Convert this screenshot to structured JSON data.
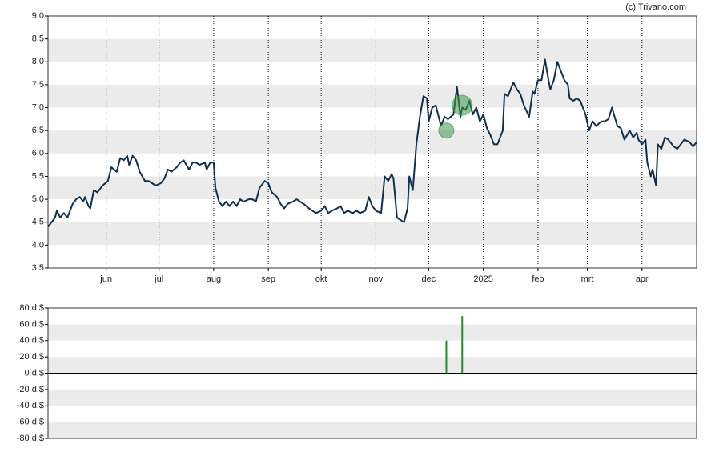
{
  "chart_data": [
    {
      "type": "line",
      "annotation": "(c) Trivano.com",
      "color": "#0e2f4f",
      "xlim": [
        0,
        368
      ],
      "ylim": [
        3.5,
        9
      ],
      "vgrid": true,
      "xticks": [
        {
          "value": 33,
          "label": "jun"
        },
        {
          "value": 63,
          "label": "jul"
        },
        {
          "value": 94,
          "label": "aug"
        },
        {
          "value": 125,
          "label": "sep"
        },
        {
          "value": 155,
          "label": "okt"
        },
        {
          "value": 186,
          "label": "nov"
        },
        {
          "value": 216,
          "label": "dec"
        },
        {
          "value": 247,
          "label": "2025"
        },
        {
          "value": 278,
          "label": "feb"
        },
        {
          "value": 306,
          "label": "mrt"
        },
        {
          "value": 337,
          "label": "apr"
        }
      ],
      "yticks": [
        {
          "value": 9,
          "label": "9,0"
        },
        {
          "value": 8.5,
          "label": "8,5"
        },
        {
          "value": 8,
          "label": "8,0"
        },
        {
          "value": 7.5,
          "label": "7,5"
        },
        {
          "value": 7,
          "label": "7,0"
        },
        {
          "value": 6.5,
          "label": "6,5"
        },
        {
          "value": 6,
          "label": "6,0"
        },
        {
          "value": 5.5,
          "label": "5,5"
        },
        {
          "value": 5,
          "label": "5,0"
        },
        {
          "value": 4.5,
          "label": "4,5"
        },
        {
          "value": 4,
          "label": "4,0"
        },
        {
          "value": 3.5,
          "label": "3,5"
        }
      ],
      "x": [
        0,
        4,
        5,
        7,
        9,
        11,
        14,
        16,
        18,
        20,
        21,
        23,
        24,
        26,
        28,
        31,
        34,
        36,
        39,
        41,
        43,
        45,
        46,
        48,
        50,
        52,
        55,
        57,
        59,
        61,
        64,
        66,
        68,
        70,
        73,
        75,
        77,
        80,
        82,
        84,
        86,
        89,
        90,
        92,
        94,
        95,
        97,
        99,
        101,
        103,
        105,
        107,
        109,
        111,
        114,
        116,
        118,
        120,
        123,
        125,
        127,
        130,
        132,
        134,
        136,
        139,
        141,
        143,
        145,
        148,
        150,
        152,
        155,
        157,
        159,
        161,
        164,
        166,
        168,
        170,
        173,
        175,
        177,
        180,
        182,
        184,
        186,
        189,
        191,
        193,
        195,
        196,
        198,
        200,
        202,
        204,
        205,
        207,
        209,
        211,
        213,
        215,
        216,
        218,
        220,
        223,
        225,
        227,
        230,
        232,
        234,
        235,
        237,
        239,
        241,
        243,
        245,
        247,
        249,
        251,
        253,
        255,
        258,
        259,
        261,
        264,
        266,
        268,
        270,
        273,
        275,
        276,
        278,
        280,
        282,
        284,
        285,
        287,
        289,
        291,
        293,
        295,
        296,
        298,
        300,
        302,
        304,
        305,
        307,
        309,
        311,
        314,
        316,
        318,
        320,
        323,
        325,
        327,
        330,
        332,
        334,
        335,
        337,
        339,
        340,
        342,
        343,
        345,
        346,
        348,
        350,
        352,
        355,
        357,
        359,
        361,
        364,
        366,
        368
      ],
      "values": [
        4.4,
        4.6,
        4.75,
        4.6,
        4.7,
        4.6,
        4.9,
        5.0,
        5.05,
        4.95,
        5.05,
        4.85,
        4.8,
        5.2,
        5.15,
        5.3,
        5.4,
        5.7,
        5.6,
        5.9,
        5.85,
        5.95,
        5.75,
        5.95,
        5.85,
        5.6,
        5.4,
        5.4,
        5.35,
        5.3,
        5.35,
        5.45,
        5.65,
        5.6,
        5.7,
        5.8,
        5.85,
        5.65,
        5.8,
        5.8,
        5.75,
        5.8,
        5.65,
        5.8,
        5.8,
        5.25,
        4.95,
        4.85,
        4.95,
        4.85,
        4.95,
        4.85,
        5.0,
        4.95,
        5.0,
        5.0,
        4.95,
        5.25,
        5.4,
        5.35,
        5.15,
        5.05,
        4.9,
        4.8,
        4.9,
        4.95,
        5.0,
        4.95,
        4.9,
        4.8,
        4.75,
        4.7,
        4.75,
        4.85,
        4.7,
        4.75,
        4.8,
        4.85,
        4.7,
        4.75,
        4.7,
        4.75,
        4.7,
        4.75,
        5.05,
        4.85,
        4.75,
        4.7,
        5.5,
        5.4,
        5.55,
        5.45,
        4.6,
        4.55,
        4.5,
        4.8,
        5.5,
        5.2,
        6.2,
        6.8,
        7.25,
        7.2,
        6.7,
        7.0,
        7.05,
        6.6,
        6.8,
        6.75,
        6.85,
        7.45,
        6.8,
        7.0,
        6.95,
        7.15,
        6.85,
        7.0,
        6.7,
        6.85,
        6.55,
        6.4,
        6.2,
        6.2,
        6.5,
        7.3,
        7.25,
        7.55,
        7.4,
        7.3,
        7.05,
        6.8,
        7.35,
        7.3,
        7.6,
        7.6,
        8.05,
        7.6,
        7.4,
        7.6,
        8.0,
        7.8,
        7.6,
        7.5,
        7.2,
        7.15,
        7.2,
        7.15,
        6.95,
        6.85,
        6.5,
        6.7,
        6.6,
        6.7,
        6.7,
        6.75,
        7.0,
        6.6,
        6.55,
        6.3,
        6.5,
        6.35,
        6.45,
        6.3,
        6.2,
        6.3,
        5.8,
        5.5,
        5.65,
        5.3,
        6.2,
        6.1,
        6.35,
        6.3,
        6.15,
        6.1,
        6.2,
        6.3,
        6.25,
        6.15,
        6.25
      ],
      "markers": {
        "color": "#3c9a48",
        "x": [
          226,
          235
        ],
        "y": [
          6.5,
          7.05
        ]
      }
    },
    {
      "type": "bar",
      "color": "#2a8a2a",
      "xlim": [
        0,
        368
      ],
      "ylim": [
        -80,
        80
      ],
      "zero_line": true,
      "yticks": [
        {
          "value": 80,
          "label": "80 d.$"
        },
        {
          "value": 60,
          "label": "60 d.$"
        },
        {
          "value": 40,
          "label": "40 d.$"
        },
        {
          "value": 20,
          "label": "20 d.$"
        },
        {
          "value": 0,
          "label": "0 d.$"
        },
        {
          "value": -20,
          "label": "-20 d.$"
        },
        {
          "value": -40,
          "label": "-40 d.$"
        },
        {
          "value": -60,
          "label": "-60 d.$"
        },
        {
          "value": -80,
          "label": "-80 d.$"
        }
      ],
      "x": [
        226,
        235
      ],
      "values": [
        40,
        70
      ]
    }
  ]
}
